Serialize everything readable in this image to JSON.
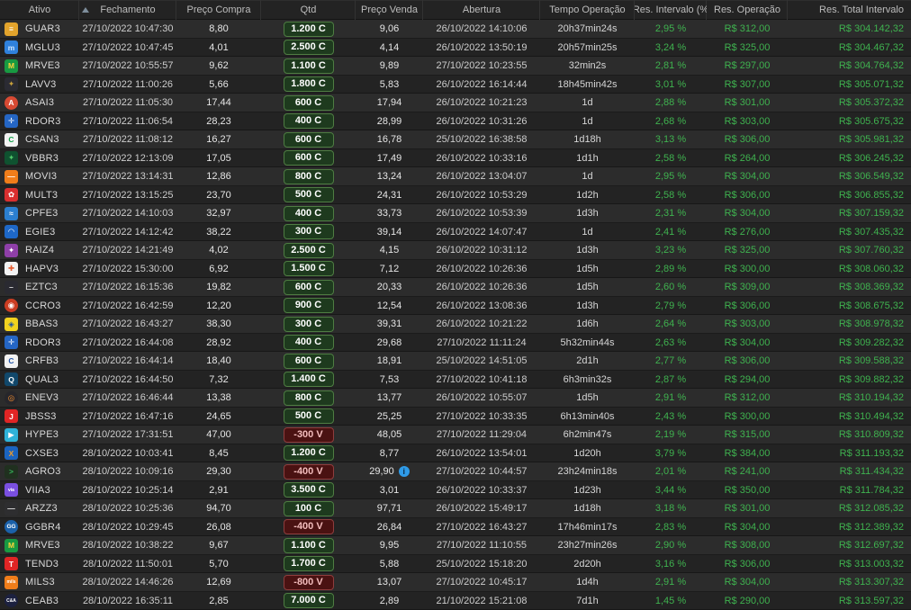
{
  "meta": {
    "colors": {
      "positive_green": "#3fb24f",
      "badge_buy_bg": "#1e3a1e",
      "badge_buy_border": "#4e7d42",
      "badge_sell_bg": "#4a1212",
      "badge_sell_border": "#8f3d3d",
      "info_icon_blue": "#2f9be8",
      "row_odd": "#2c2c2c",
      "row_even": "#232323",
      "header_bg": "#232323"
    }
  },
  "table": {
    "columns": [
      {
        "id": "ativo",
        "label": "Ativo"
      },
      {
        "id": "fechamento",
        "label": "Fechamento"
      },
      {
        "id": "preco_compra",
        "label": "Preço Compra"
      },
      {
        "id": "qtd",
        "label": "Qtd"
      },
      {
        "id": "preco_venda",
        "label": "Preço Venda"
      },
      {
        "id": "abertura",
        "label": "Abertura"
      },
      {
        "id": "tempo_operacao",
        "label": "Tempo Operação"
      },
      {
        "id": "res_intervalo",
        "label": "Res. Intervalo (%"
      },
      {
        "id": "res_operacao",
        "label": "Res. Operação"
      },
      {
        "id": "res_total",
        "label": "Res. Total Intervalo"
      }
    ],
    "sort": {
      "column": "fechamento",
      "direction": "asc"
    },
    "rows": [
      {
        "ticker": "GUAR3",
        "icon": {
          "bg": "#e3a42c",
          "fg": "#ffffff",
          "glyph": "≡",
          "shape": "square"
        },
        "fechamento": "27/10/2022 10:47:30",
        "preco_compra": "8,80",
        "qtd": "1.200 C",
        "qtd_side": "C",
        "preco_venda": "9,06",
        "info": false,
        "abertura": "26/10/2022 14:10:06",
        "tempo_operacao": "20h37min24s",
        "res_intervalo": "2,95 %",
        "res_operacao": "R$ 312,00",
        "res_total": "R$ 304.142,32"
      },
      {
        "ticker": "MGLU3",
        "icon": {
          "bg": "#2f81dc",
          "fg": "#cfe6ff",
          "glyph": "m",
          "shape": "square"
        },
        "fechamento": "27/10/2022 10:47:45",
        "preco_compra": "4,01",
        "qtd": "2.500 C",
        "qtd_side": "C",
        "preco_venda": "4,14",
        "info": false,
        "abertura": "26/10/2022 13:50:19",
        "tempo_operacao": "20h57min25s",
        "res_intervalo": "3,24 %",
        "res_operacao": "R$ 325,00",
        "res_total": "R$ 304.467,32"
      },
      {
        "ticker": "MRVE3",
        "icon": {
          "bg": "#189a42",
          "fg": "#ffd43c",
          "glyph": "M",
          "shape": "square"
        },
        "fechamento": "27/10/2022 10:55:57",
        "preco_compra": "9,62",
        "qtd": "1.100 C",
        "qtd_side": "C",
        "preco_venda": "9,89",
        "info": false,
        "abertura": "27/10/2022 10:23:55",
        "tempo_operacao": "32min2s",
        "res_intervalo": "2,81 %",
        "res_operacao": "R$ 297,00",
        "res_total": "R$ 304.764,32"
      },
      {
        "ticker": "LAVV3",
        "icon": {
          "bg": "#2b2b33",
          "fg": "#c9a13b",
          "glyph": "✦",
          "shape": "square"
        },
        "fechamento": "27/10/2022 11:00:26",
        "preco_compra": "5,66",
        "qtd": "1.800 C",
        "qtd_side": "C",
        "preco_venda": "5,83",
        "info": false,
        "abertura": "26/10/2022 16:14:44",
        "tempo_operacao": "18h45min42s",
        "res_intervalo": "3,01 %",
        "res_operacao": "R$ 307,00",
        "res_total": "R$ 305.071,32"
      },
      {
        "ticker": "ASAI3",
        "icon": {
          "bg": "#d84a33",
          "fg": "#ffffff",
          "glyph": "A",
          "shape": "circle"
        },
        "fechamento": "27/10/2022 11:05:30",
        "preco_compra": "17,44",
        "qtd": "600 C",
        "qtd_side": "C",
        "preco_venda": "17,94",
        "info": false,
        "abertura": "26/10/2022 10:21:23",
        "tempo_operacao": "1d",
        "res_intervalo": "2,88 %",
        "res_operacao": "R$ 301,00",
        "res_total": "R$ 305.372,32"
      },
      {
        "ticker": "RDOR3",
        "icon": {
          "bg": "#2566c4",
          "fg": "#ffffff",
          "glyph": "✛",
          "shape": "square"
        },
        "fechamento": "27/10/2022 11:06:54",
        "preco_compra": "28,23",
        "qtd": "400 C",
        "qtd_side": "C",
        "preco_venda": "28,99",
        "info": false,
        "abertura": "26/10/2022 10:31:26",
        "tempo_operacao": "1d",
        "res_intervalo": "2,68 %",
        "res_operacao": "R$ 303,00",
        "res_total": "R$ 305.675,32"
      },
      {
        "ticker": "CSAN3",
        "icon": {
          "bg": "#f2f2f2",
          "fg": "#13a04a",
          "glyph": "C",
          "shape": "square"
        },
        "fechamento": "27/10/2022 11:08:12",
        "preco_compra": "16,27",
        "qtd": "600 C",
        "qtd_side": "C",
        "preco_venda": "16,78",
        "info": false,
        "abertura": "25/10/2022 16:38:58",
        "tempo_operacao": "1d18h",
        "res_intervalo": "3,13 %",
        "res_operacao": "R$ 306,00",
        "res_total": "R$ 305.981,32"
      },
      {
        "ticker": "VBBR3",
        "icon": {
          "bg": "#0f5230",
          "fg": "#52c96a",
          "glyph": "✦",
          "shape": "square"
        },
        "fechamento": "27/10/2022 12:13:09",
        "preco_compra": "17,05",
        "qtd": "600 C",
        "qtd_side": "C",
        "preco_venda": "17,49",
        "info": false,
        "abertura": "26/10/2022 10:33:16",
        "tempo_operacao": "1d1h",
        "res_intervalo": "2,58 %",
        "res_operacao": "R$ 264,00",
        "res_total": "R$ 306.245,32"
      },
      {
        "ticker": "MOVI3",
        "icon": {
          "bg": "#f07d1a",
          "fg": "#ffffff",
          "glyph": "—",
          "shape": "square"
        },
        "fechamento": "27/10/2022 13:14:31",
        "preco_compra": "12,86",
        "qtd": "800 C",
        "qtd_side": "C",
        "preco_venda": "13,24",
        "info": false,
        "abertura": "26/10/2022 13:04:07",
        "tempo_operacao": "1d",
        "res_intervalo": "2,95 %",
        "res_operacao": "R$ 304,00",
        "res_total": "R$ 306.549,32"
      },
      {
        "ticker": "MULT3",
        "icon": {
          "bg": "#d92f2f",
          "fg": "#ffffff",
          "glyph": "✿",
          "shape": "square"
        },
        "fechamento": "27/10/2022 13:15:25",
        "preco_compra": "23,70",
        "qtd": "500 C",
        "qtd_side": "C",
        "preco_venda": "24,31",
        "info": false,
        "abertura": "26/10/2022 10:53:29",
        "tempo_operacao": "1d2h",
        "res_intervalo": "2,58 %",
        "res_operacao": "R$ 306,00",
        "res_total": "R$ 306.855,32"
      },
      {
        "ticker": "CPFE3",
        "icon": {
          "bg": "#2b7fd0",
          "fg": "#ffffff",
          "glyph": "≈",
          "shape": "square"
        },
        "fechamento": "27/10/2022 14:10:03",
        "preco_compra": "32,97",
        "qtd": "400 C",
        "qtd_side": "C",
        "preco_venda": "33,73",
        "info": false,
        "abertura": "26/10/2022 10:53:39",
        "tempo_operacao": "1d3h",
        "res_intervalo": "2,31 %",
        "res_operacao": "R$ 304,00",
        "res_total": "R$ 307.159,32"
      },
      {
        "ticker": "EGIE3",
        "icon": {
          "bg": "#1e68c8",
          "fg": "#ffffff",
          "glyph": "◠",
          "shape": "square"
        },
        "fechamento": "27/10/2022 14:12:42",
        "preco_compra": "38,22",
        "qtd": "300 C",
        "qtd_side": "C",
        "preco_venda": "39,14",
        "info": false,
        "abertura": "26/10/2022 14:07:47",
        "tempo_operacao": "1d",
        "res_intervalo": "2,41 %",
        "res_operacao": "R$ 276,00",
        "res_total": "R$ 307.435,32"
      },
      {
        "ticker": "RAIZ4",
        "icon": {
          "bg": "#8f3fa8",
          "fg": "#ffffff",
          "glyph": "✦",
          "shape": "square"
        },
        "fechamento": "27/10/2022 14:21:49",
        "preco_compra": "4,02",
        "qtd": "2.500 C",
        "qtd_side": "C",
        "preco_venda": "4,15",
        "info": false,
        "abertura": "26/10/2022 10:31:12",
        "tempo_operacao": "1d3h",
        "res_intervalo": "3,23 %",
        "res_operacao": "R$ 325,00",
        "res_total": "R$ 307.760,32"
      },
      {
        "ticker": "HAPV3",
        "icon": {
          "bg": "#f2f2f2",
          "fg": "#e65a2e",
          "glyph": "✚",
          "shape": "square"
        },
        "fechamento": "27/10/2022 15:30:00",
        "preco_compra": "6,92",
        "qtd": "1.500 C",
        "qtd_side": "C",
        "preco_venda": "7,12",
        "info": false,
        "abertura": "26/10/2022 10:26:36",
        "tempo_operacao": "1d5h",
        "res_intervalo": "2,89 %",
        "res_operacao": "R$ 300,00",
        "res_total": "R$ 308.060,32"
      },
      {
        "ticker": "EZTC3",
        "icon": {
          "bg": "#2a2a31",
          "fg": "#e0e0e0",
          "glyph": "–",
          "shape": "square"
        },
        "fechamento": "27/10/2022 16:15:36",
        "preco_compra": "19,82",
        "qtd": "600 C",
        "qtd_side": "C",
        "preco_venda": "20,33",
        "info": false,
        "abertura": "26/10/2022 10:26:36",
        "tempo_operacao": "1d5h",
        "res_intervalo": "2,60 %",
        "res_operacao": "R$ 309,00",
        "res_total": "R$ 308.369,32"
      },
      {
        "ticker": "CCRO3",
        "icon": {
          "bg": "#cc3d22",
          "fg": "#ffffff",
          "glyph": "◉",
          "shape": "circle"
        },
        "fechamento": "27/10/2022 16:42:59",
        "preco_compra": "12,20",
        "qtd": "900 C",
        "qtd_side": "C",
        "preco_venda": "12,54",
        "info": false,
        "abertura": "26/10/2022 13:08:36",
        "tempo_operacao": "1d3h",
        "res_intervalo": "2,79 %",
        "res_operacao": "R$ 306,00",
        "res_total": "R$ 308.675,32"
      },
      {
        "ticker": "BBAS3",
        "icon": {
          "bg": "#f2d21f",
          "fg": "#1b4fa0",
          "glyph": "◈",
          "shape": "square"
        },
        "fechamento": "27/10/2022 16:43:27",
        "preco_compra": "38,30",
        "qtd": "300 C",
        "qtd_side": "C",
        "preco_venda": "39,31",
        "info": false,
        "abertura": "26/10/2022 10:21:22",
        "tempo_operacao": "1d6h",
        "res_intervalo": "2,64 %",
        "res_operacao": "R$ 303,00",
        "res_total": "R$ 308.978,32"
      },
      {
        "ticker": "RDOR3",
        "icon": {
          "bg": "#2566c4",
          "fg": "#ffffff",
          "glyph": "✛",
          "shape": "square"
        },
        "fechamento": "27/10/2022 16:44:08",
        "preco_compra": "28,92",
        "qtd": "400 C",
        "qtd_side": "C",
        "preco_venda": "29,68",
        "info": false,
        "abertura": "27/10/2022 11:11:24",
        "tempo_operacao": "5h32min44s",
        "res_intervalo": "2,63 %",
        "res_operacao": "R$ 304,00",
        "res_total": "R$ 309.282,32"
      },
      {
        "ticker": "CRFB3",
        "icon": {
          "bg": "#f2f2f2",
          "fg": "#2456a8",
          "glyph": "C",
          "shape": "square"
        },
        "fechamento": "27/10/2022 16:44:14",
        "preco_compra": "18,40",
        "qtd": "600 C",
        "qtd_side": "C",
        "preco_venda": "18,91",
        "info": false,
        "abertura": "25/10/2022 14:51:05",
        "tempo_operacao": "2d1h",
        "res_intervalo": "2,77 %",
        "res_operacao": "R$ 306,00",
        "res_total": "R$ 309.588,32"
      },
      {
        "ticker": "QUAL3",
        "icon": {
          "bg": "#11486b",
          "fg": "#ffffff",
          "glyph": "Q",
          "shape": "square"
        },
        "fechamento": "27/10/2022 16:44:50",
        "preco_compra": "7,32",
        "qtd": "1.400 C",
        "qtd_side": "C",
        "preco_venda": "7,53",
        "info": false,
        "abertura": "27/10/2022 10:41:18",
        "tempo_operacao": "6h3min32s",
        "res_intervalo": "2,87 %",
        "res_operacao": "R$ 294,00",
        "res_total": "R$ 309.882,32"
      },
      {
        "ticker": "ENEV3",
        "icon": {
          "bg": "#26262b",
          "fg": "#f08c2e",
          "glyph": "◎",
          "shape": "circle"
        },
        "fechamento": "27/10/2022 16:46:44",
        "preco_compra": "13,38",
        "qtd": "800 C",
        "qtd_side": "C",
        "preco_venda": "13,77",
        "info": false,
        "abertura": "26/10/2022 10:55:07",
        "tempo_operacao": "1d5h",
        "res_intervalo": "2,91 %",
        "res_operacao": "R$ 312,00",
        "res_total": "R$ 310.194,32"
      },
      {
        "ticker": "JBSS3",
        "icon": {
          "bg": "#e02525",
          "fg": "#ffffff",
          "glyph": "J",
          "shape": "square"
        },
        "fechamento": "27/10/2022 16:47:16",
        "preco_compra": "24,65",
        "qtd": "500 C",
        "qtd_side": "C",
        "preco_venda": "25,25",
        "info": false,
        "abertura": "27/10/2022 10:33:35",
        "tempo_operacao": "6h13min40s",
        "res_intervalo": "2,43 %",
        "res_operacao": "R$ 300,00",
        "res_total": "R$ 310.494,32"
      },
      {
        "ticker": "HYPE3",
        "icon": {
          "bg": "#2fb3d9",
          "fg": "#ffffff",
          "glyph": "▶",
          "shape": "square"
        },
        "fechamento": "27/10/2022 17:31:51",
        "preco_compra": "47,00",
        "qtd": "-300 V",
        "qtd_side": "V",
        "preco_venda": "48,05",
        "info": false,
        "abertura": "27/10/2022 11:29:04",
        "tempo_operacao": "6h2min47s",
        "res_intervalo": "2,19 %",
        "res_operacao": "R$ 315,00",
        "res_total": "R$ 310.809,32"
      },
      {
        "ticker": "CXSE3",
        "icon": {
          "bg": "#1b64c0",
          "fg": "#f29c2a",
          "glyph": "X",
          "shape": "square"
        },
        "fechamento": "28/10/2022 10:03:41",
        "preco_compra": "8,45",
        "qtd": "1.200 C",
        "qtd_side": "C",
        "preco_venda": "8,77",
        "info": false,
        "abertura": "26/10/2022 13:54:01",
        "tempo_operacao": "1d20h",
        "res_intervalo": "3,79 %",
        "res_operacao": "R$ 384,00",
        "res_total": "R$ 311.193,32"
      },
      {
        "ticker": "AGRO3",
        "icon": {
          "bg": "#20301f",
          "fg": "#35b55a",
          "glyph": ">",
          "shape": "square"
        },
        "fechamento": "28/10/2022 10:09:16",
        "preco_compra": "29,30",
        "qtd": "-400 V",
        "qtd_side": "V",
        "preco_venda": "29,90",
        "info": true,
        "abertura": "27/10/2022 10:44:57",
        "tempo_operacao": "23h24min18s",
        "res_intervalo": "2,01 %",
        "res_operacao": "R$ 241,00",
        "res_total": "R$ 311.434,32"
      },
      {
        "ticker": "VIIA3",
        "icon": {
          "bg": "#7a4fe0",
          "fg": "#ffffff",
          "glyph": "via",
          "shape": "square"
        },
        "fechamento": "28/10/2022 10:25:14",
        "preco_compra": "2,91",
        "qtd": "3.500 C",
        "qtd_side": "C",
        "preco_venda": "3,01",
        "info": false,
        "abertura": "26/10/2022 10:33:37",
        "tempo_operacao": "1d23h",
        "res_intervalo": "3,44 %",
        "res_operacao": "R$ 350,00",
        "res_total": "R$ 311.784,32"
      },
      {
        "ticker": "ARZZ3",
        "icon": {
          "bg": "#2e2e30",
          "fg": "#e8e8e8",
          "glyph": "—",
          "shape": "square"
        },
        "fechamento": "28/10/2022 10:25:36",
        "preco_compra": "94,70",
        "qtd": "100 C",
        "qtd_side": "C",
        "preco_venda": "97,71",
        "info": false,
        "abertura": "26/10/2022 15:49:17",
        "tempo_operacao": "1d18h",
        "res_intervalo": "3,18 %",
        "res_operacao": "R$ 301,00",
        "res_total": "R$ 312.085,32"
      },
      {
        "ticker": "GGBR4",
        "icon": {
          "bg": "#1b61aa",
          "fg": "#ffffff",
          "glyph": "GG",
          "shape": "circle"
        },
        "fechamento": "28/10/2022 10:29:45",
        "preco_compra": "26,08",
        "qtd": "-400 V",
        "qtd_side": "V",
        "preco_venda": "26,84",
        "info": false,
        "abertura": "27/10/2022 16:43:27",
        "tempo_operacao": "17h46min17s",
        "res_intervalo": "2,83 %",
        "res_operacao": "R$ 304,00",
        "res_total": "R$ 312.389,32"
      },
      {
        "ticker": "MRVE3",
        "icon": {
          "bg": "#189a42",
          "fg": "#ffd43c",
          "glyph": "M",
          "shape": "square"
        },
        "fechamento": "28/10/2022 10:38:22",
        "preco_compra": "9,67",
        "qtd": "1.100 C",
        "qtd_side": "C",
        "preco_venda": "9,95",
        "info": false,
        "abertura": "27/10/2022 11:10:55",
        "tempo_operacao": "23h27min26s",
        "res_intervalo": "2,90 %",
        "res_operacao": "R$ 308,00",
        "res_total": "R$ 312.697,32"
      },
      {
        "ticker": "TEND3",
        "icon": {
          "bg": "#e02525",
          "fg": "#ffffff",
          "glyph": "T",
          "shape": "square"
        },
        "fechamento": "28/10/2022 11:50:01",
        "preco_compra": "5,70",
        "qtd": "1.700 C",
        "qtd_side": "C",
        "preco_venda": "5,88",
        "info": false,
        "abertura": "25/10/2022 15:18:20",
        "tempo_operacao": "2d20h",
        "res_intervalo": "3,16 %",
        "res_operacao": "R$ 306,00",
        "res_total": "R$ 313.003,32"
      },
      {
        "ticker": "MILS3",
        "icon": {
          "bg": "#f07d1a",
          "fg": "#ffffff",
          "glyph": "mils",
          "shape": "square"
        },
        "fechamento": "28/10/2022 14:46:26",
        "preco_compra": "12,69",
        "qtd": "-800 V",
        "qtd_side": "V",
        "preco_venda": "13,07",
        "info": false,
        "abertura": "27/10/2022 10:45:17",
        "tempo_operacao": "1d4h",
        "res_intervalo": "2,91 %",
        "res_operacao": "R$ 304,00",
        "res_total": "R$ 313.307,32"
      },
      {
        "ticker": "CEAB3",
        "icon": {
          "bg": "#1c2140",
          "fg": "#ffffff",
          "glyph": "C&A",
          "shape": "circle"
        },
        "fechamento": "28/10/2022 16:35:11",
        "preco_compra": "2,85",
        "qtd": "7.000 C",
        "qtd_side": "C",
        "preco_venda": "2,89",
        "info": false,
        "abertura": "21/10/2022 15:21:08",
        "tempo_operacao": "7d1h",
        "res_intervalo": "1,45 %",
        "res_operacao": "R$ 290,00",
        "res_total": "R$ 313.597,32"
      }
    ]
  }
}
